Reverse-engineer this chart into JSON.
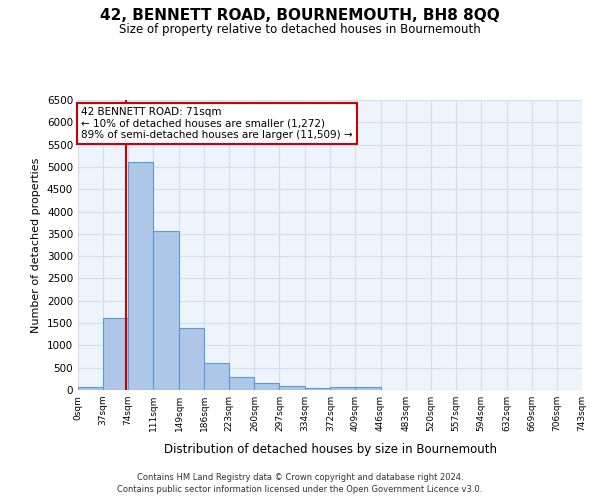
{
  "title": "42, BENNETT ROAD, BOURNEMOUTH, BH8 8QQ",
  "subtitle": "Size of property relative to detached houses in Bournemouth",
  "xlabel": "Distribution of detached houses by size in Bournemouth",
  "ylabel": "Number of detached properties",
  "bin_edges": [
    0,
    37,
    74,
    111,
    149,
    186,
    223,
    260,
    297,
    334,
    372,
    409,
    446,
    483,
    520,
    557,
    594,
    632,
    669,
    706,
    743
  ],
  "bar_heights": [
    70,
    1620,
    5100,
    3570,
    1400,
    600,
    300,
    150,
    90,
    50,
    75,
    60,
    0,
    0,
    0,
    0,
    0,
    0,
    0,
    0
  ],
  "bar_color": "#aec6e8",
  "bar_edge_color": "#5b9bd5",
  "property_line_x": 71,
  "property_line_color": "#cc0000",
  "annotation_text": "42 BENNETT ROAD: 71sqm\n← 10% of detached houses are smaller (1,272)\n89% of semi-detached houses are larger (11,509) →",
  "annotation_box_color": "#ffffff",
  "annotation_box_edge_color": "#cc0000",
  "ylim": [
    0,
    6500
  ],
  "yticks": [
    0,
    500,
    1000,
    1500,
    2000,
    2500,
    3000,
    3500,
    4000,
    4500,
    5000,
    5500,
    6000,
    6500
  ],
  "tick_labels": [
    "0sqm",
    "37sqm",
    "74sqm",
    "111sqm",
    "149sqm",
    "186sqm",
    "223sqm",
    "260sqm",
    "297sqm",
    "334sqm",
    "372sqm",
    "409sqm",
    "446sqm",
    "483sqm",
    "520sqm",
    "557sqm",
    "594sqm",
    "632sqm",
    "669sqm",
    "706sqm",
    "743sqm"
  ],
  "grid_color": "#d0dff0",
  "background_color": "#eef4fb",
  "footer_line1": "Contains HM Land Registry data © Crown copyright and database right 2024.",
  "footer_line2": "Contains public sector information licensed under the Open Government Licence v3.0."
}
